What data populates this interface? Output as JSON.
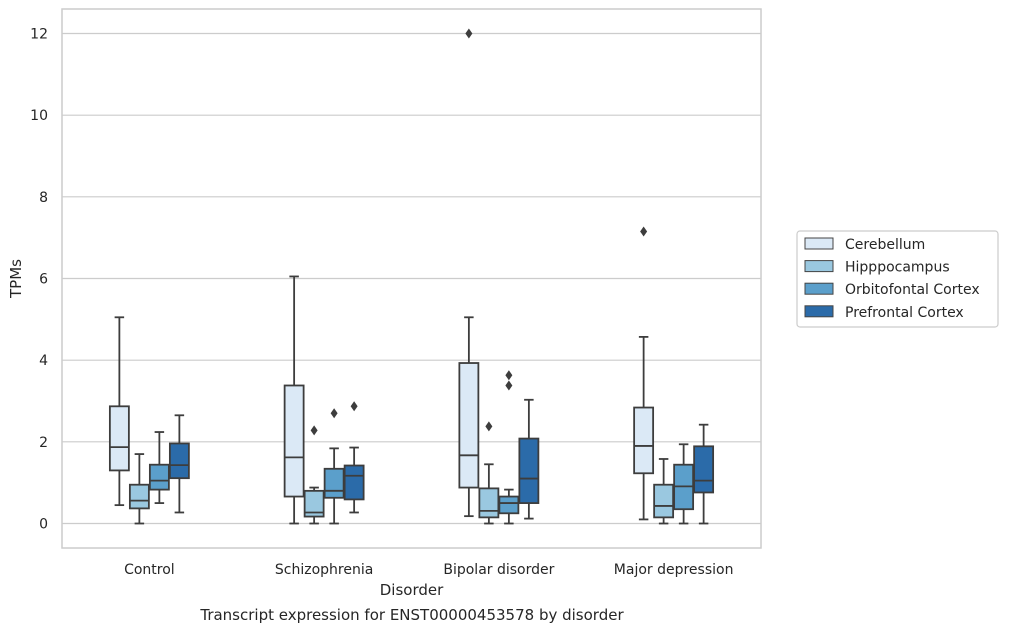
{
  "chart_data": {
    "type": "box",
    "title": "",
    "caption": "Transcript expression for ENST00000453578 by disorder",
    "xlabel": "Disorder",
    "ylabel": "TPMs",
    "ylim": [
      -0.6,
      12.6
    ],
    "yticks": [
      0,
      2,
      4,
      6,
      8,
      10,
      12
    ],
    "grid": "horizontal",
    "legend_position": "right",
    "categories": [
      "Control",
      "Schizophrenia",
      "Bipolar disorder",
      "Major depression"
    ],
    "series": [
      {
        "name": "Cerebellum",
        "color": "#dbe9f6",
        "boxes": [
          {
            "whisker_low": 0.45,
            "q1": 1.3,
            "median": 1.87,
            "q3": 2.87,
            "whisker_high": 5.05,
            "outliers": []
          },
          {
            "whisker_low": 0.0,
            "q1": 0.66,
            "median": 1.62,
            "q3": 3.38,
            "whisker_high": 6.05,
            "outliers": []
          },
          {
            "whisker_low": 0.18,
            "q1": 0.88,
            "median": 1.67,
            "q3": 3.93,
            "whisker_high": 5.05,
            "outliers": [
              12.0
            ]
          },
          {
            "whisker_low": 0.1,
            "q1": 1.23,
            "median": 1.9,
            "q3": 2.84,
            "whisker_high": 4.57,
            "outliers": [
              7.15
            ]
          }
        ]
      },
      {
        "name": "Hipppocampus",
        "color": "#9ac8e0",
        "boxes": [
          {
            "whisker_low": 0.0,
            "q1": 0.37,
            "median": 0.56,
            "q3": 0.95,
            "whisker_high": 1.7,
            "outliers": []
          },
          {
            "whisker_low": 0.0,
            "q1": 0.17,
            "median": 0.27,
            "q3": 0.8,
            "whisker_high": 0.88,
            "outliers": [
              2.28
            ]
          },
          {
            "whisker_low": 0.0,
            "q1": 0.15,
            "median": 0.31,
            "q3": 0.86,
            "whisker_high": 1.45,
            "outliers": [
              2.38
            ]
          },
          {
            "whisker_low": 0.0,
            "q1": 0.15,
            "median": 0.43,
            "q3": 0.95,
            "whisker_high": 1.58,
            "outliers": []
          }
        ]
      },
      {
        "name": "Orbitofontal Cortex",
        "color": "#5b9fcb",
        "boxes": [
          {
            "whisker_low": 0.5,
            "q1": 0.83,
            "median": 1.05,
            "q3": 1.44,
            "whisker_high": 2.24,
            "outliers": []
          },
          {
            "whisker_low": 0.0,
            "q1": 0.63,
            "median": 0.8,
            "q3": 1.34,
            "whisker_high": 1.84,
            "outliers": [
              2.7
            ]
          },
          {
            "whisker_low": 0.0,
            "q1": 0.25,
            "median": 0.5,
            "q3": 0.66,
            "whisker_high": 0.83,
            "outliers": [
              3.38,
              3.63
            ]
          },
          {
            "whisker_low": 0.0,
            "q1": 0.35,
            "median": 0.91,
            "q3": 1.44,
            "whisker_high": 1.94,
            "outliers": []
          }
        ]
      },
      {
        "name": "Prefrontal Cortex",
        "color": "#2b6ba9",
        "boxes": [
          {
            "whisker_low": 0.27,
            "q1": 1.11,
            "median": 1.43,
            "q3": 1.96,
            "whisker_high": 2.65,
            "outliers": []
          },
          {
            "whisker_low": 0.27,
            "q1": 0.59,
            "median": 1.17,
            "q3": 1.42,
            "whisker_high": 1.86,
            "outliers": [
              2.87
            ]
          },
          {
            "whisker_low": 0.12,
            "q1": 0.5,
            "median": 1.1,
            "q3": 2.08,
            "whisker_high": 3.03,
            "outliers": []
          },
          {
            "whisker_low": 0.0,
            "q1": 0.76,
            "median": 1.05,
            "q3": 1.89,
            "whisker_high": 2.42,
            "outliers": []
          }
        ]
      }
    ]
  }
}
